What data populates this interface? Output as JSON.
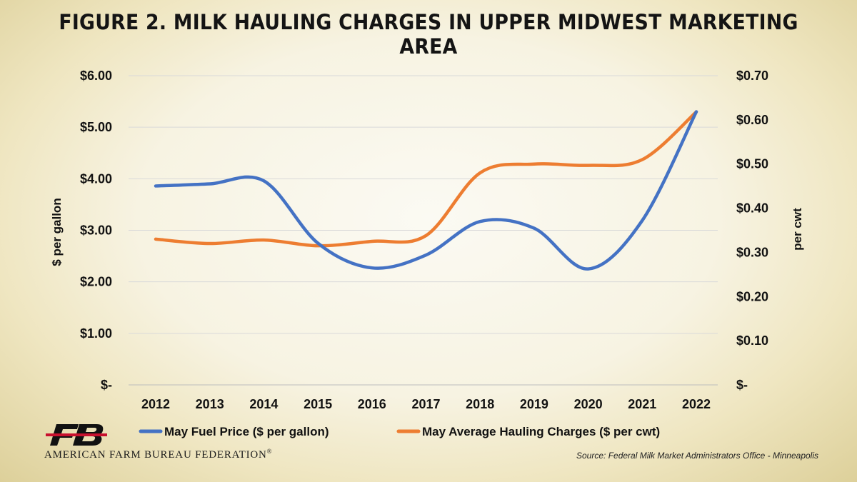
{
  "title": "FIGURE 2. MILK HAULING CHARGES IN UPPER MIDWEST MARKETING AREA",
  "org": {
    "name": "AMERICAN FARM BUREAU FEDERATION",
    "trademark": "®",
    "logo_text": "FB"
  },
  "source": "Source: Federal Milk Market Administrators Office - Minneapolis",
  "chart_data": {
    "type": "line",
    "categories": [
      "2012",
      "2013",
      "2014",
      "2015",
      "2016",
      "2017",
      "2018",
      "2019",
      "2020",
      "2021",
      "2022"
    ],
    "series": [
      {
        "name": "May Fuel Price ($ per gallon)",
        "axis": "left",
        "color": "#4472c4",
        "values": [
          3.86,
          3.9,
          3.96,
          2.75,
          2.27,
          2.52,
          3.17,
          3.04,
          2.25,
          3.19,
          5.3
        ]
      },
      {
        "name": "May Average Hauling Charges ($ per cwt)",
        "axis": "right",
        "color": "#ed7d31",
        "values": [
          0.33,
          0.32,
          0.328,
          0.315,
          0.325,
          0.338,
          0.48,
          0.5,
          0.497,
          0.51,
          0.618
        ]
      }
    ],
    "ylabel": "$ per gallon",
    "y2label": "per cwt",
    "ylim": [
      0,
      6
    ],
    "y2lim": [
      0,
      0.7
    ],
    "yticks": [
      "$-",
      "$1.00",
      "$2.00",
      "$3.00",
      "$4.00",
      "$5.00",
      "$6.00"
    ],
    "y2ticks": [
      "$-",
      "$0.10",
      "$0.20",
      "$0.30",
      "$0.40",
      "$0.50",
      "$0.60",
      "$0.70"
    ],
    "grid": true,
    "legend": "bottom"
  }
}
